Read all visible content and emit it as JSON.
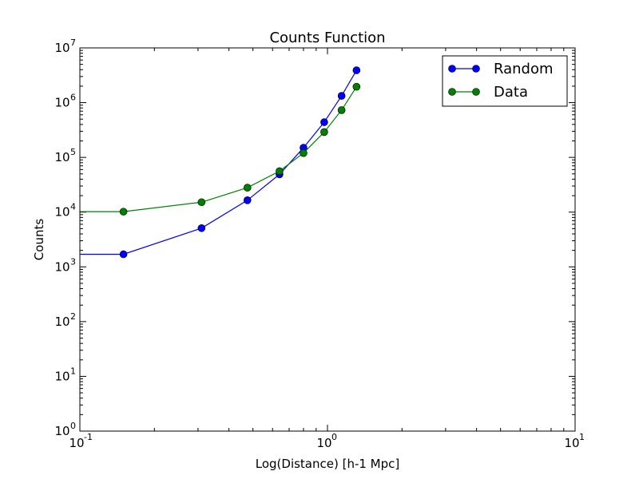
{
  "chart_data": {
    "type": "line",
    "title": "Counts Function",
    "xlabel": "Log(Distance) [h-1 Mpc]",
    "ylabel": "Counts",
    "xscale": "log",
    "yscale": "log",
    "xlim": [
      0.1,
      10
    ],
    "ylim": [
      1,
      10000000
    ],
    "grid": false,
    "legend_position": "top-right",
    "x_ticks": [
      {
        "base": "10",
        "exp": "-1",
        "value": 0.1
      },
      {
        "base": "10",
        "exp": "0",
        "value": 1
      },
      {
        "base": "10",
        "exp": "1",
        "value": 10
      }
    ],
    "y_ticks": [
      {
        "base": "10",
        "exp": "0",
        "value": 1
      },
      {
        "base": "10",
        "exp": "1",
        "value": 10
      },
      {
        "base": "10",
        "exp": "2",
        "value": 100
      },
      {
        "base": "10",
        "exp": "3",
        "value": 1000
      },
      {
        "base": "10",
        "exp": "4",
        "value": 10000
      },
      {
        "base": "10",
        "exp": "5",
        "value": 100000
      },
      {
        "base": "10",
        "exp": "6",
        "value": 1000000
      },
      {
        "base": "10",
        "exp": "7",
        "value": 10000000
      }
    ],
    "series": [
      {
        "name": "Random",
        "color": "#0000ff",
        "points": [
          [
            0.1,
            1700
          ],
          [
            0.15,
            1700
          ],
          [
            0.31,
            5100
          ],
          [
            0.475,
            16500
          ],
          [
            0.64,
            49000
          ],
          [
            0.8,
            150000
          ],
          [
            0.97,
            440000
          ],
          [
            1.14,
            1330000
          ],
          [
            1.31,
            3900000
          ]
        ]
      },
      {
        "name": "Data",
        "color": "#008000",
        "points": [
          [
            0.1,
            10200
          ],
          [
            0.15,
            10200
          ],
          [
            0.31,
            15200
          ],
          [
            0.475,
            28000
          ],
          [
            0.64,
            56000
          ],
          [
            0.8,
            120000
          ],
          [
            0.97,
            290000
          ],
          [
            1.14,
            730000
          ],
          [
            1.31,
            1950000
          ]
        ]
      }
    ]
  }
}
